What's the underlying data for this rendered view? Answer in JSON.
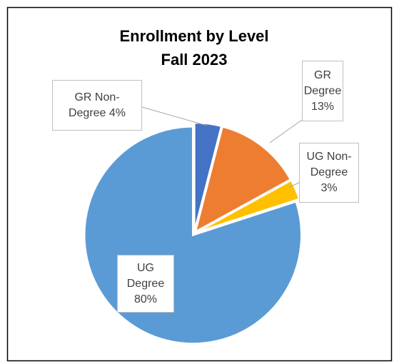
{
  "chart_data": {
    "type": "pie",
    "title": "Enrollment by Level",
    "subtitle": "Fall 2023",
    "categories": [
      "GR Non-Degree",
      "GR Degree",
      "UG Non-Degree",
      "UG Degree"
    ],
    "values": [
      4,
      13,
      3,
      80
    ],
    "value_labels": [
      "4%",
      "13%",
      "3%",
      "80%"
    ],
    "colors": [
      "#4472c4",
      "#ed7d31",
      "#ffc000",
      "#5b9bd5"
    ]
  }
}
